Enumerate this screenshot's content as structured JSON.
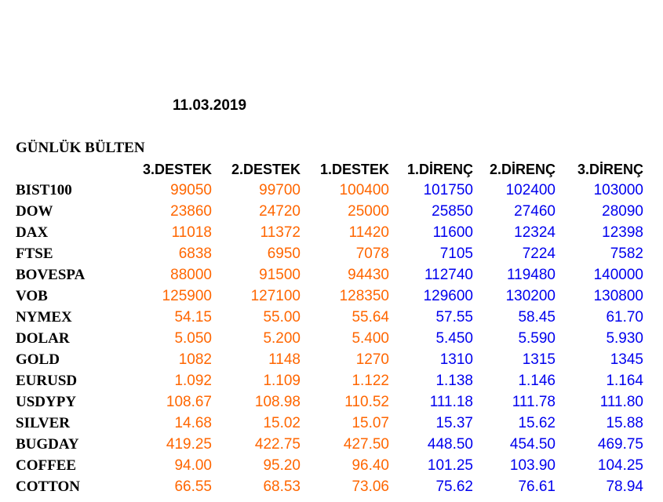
{
  "date": "11.03.2019",
  "title": "GÜNLÜK BÜLTEN",
  "colors": {
    "support": "#ff6600",
    "resistance": "#0000ee",
    "text": "#000000"
  },
  "headers": [
    "3.DESTEK",
    "2.DESTEK",
    "1.DESTEK",
    "1.DİRENÇ",
    "2.DİRENÇ",
    "3.DİRENÇ"
  ],
  "rows": [
    {
      "name": "BIST100",
      "values": [
        "99050",
        "99700",
        "100400",
        "101750",
        "102400",
        "103000"
      ]
    },
    {
      "name": "DOW",
      "values": [
        "23860",
        "24720",
        "25000",
        "25850",
        "27460",
        "28090"
      ]
    },
    {
      "name": "DAX",
      "values": [
        "11018",
        "11372",
        "11420",
        "11600",
        "12324",
        "12398"
      ]
    },
    {
      "name": "FTSE",
      "values": [
        "6838",
        "6950",
        "7078",
        "7105",
        "7224",
        "7582"
      ]
    },
    {
      "name": "BOVESPA",
      "values": [
        "88000",
        "91500",
        "94430",
        "112740",
        "119480",
        "140000"
      ]
    },
    {
      "name": "VOB",
      "values": [
        "125900",
        "127100",
        "128350",
        "129600",
        "130200",
        "130800"
      ]
    },
    {
      "name": "NYMEX",
      "values": [
        "54.15",
        "55.00",
        "55.64",
        "57.55",
        "58.45",
        "61.70"
      ]
    },
    {
      "name": "DOLAR",
      "values": [
        "5.050",
        "5.200",
        "5.400",
        "5.450",
        "5.590",
        "5.930"
      ]
    },
    {
      "name": "GOLD",
      "values": [
        "1082",
        "1148",
        "1270",
        "1310",
        "1315",
        "1345"
      ]
    },
    {
      "name": "EURUSD",
      "values": [
        "1.092",
        "1.109",
        "1.122",
        "1.138",
        "1.146",
        "1.164"
      ]
    },
    {
      "name": "USDYPY",
      "values": [
        "108.67",
        "108.98",
        "110.52",
        "111.18",
        "111.78",
        "111.80"
      ]
    },
    {
      "name": "SILVER",
      "values": [
        "14.68",
        "15.02",
        "15.07",
        "15.37",
        "15.62",
        "15.88"
      ]
    },
    {
      "name": "BUGDAY",
      "values": [
        "419.25",
        "422.75",
        "427.50",
        "448.50",
        "454.50",
        "469.75"
      ]
    },
    {
      "name": "COFFEE",
      "values": [
        "94.00",
        "95.20",
        "96.40",
        "101.25",
        "103.90",
        "104.25"
      ]
    },
    {
      "name": "COTTON",
      "values": [
        "66.55",
        "68.53",
        "73.06",
        "75.62",
        "76.61",
        "78.94"
      ]
    }
  ]
}
